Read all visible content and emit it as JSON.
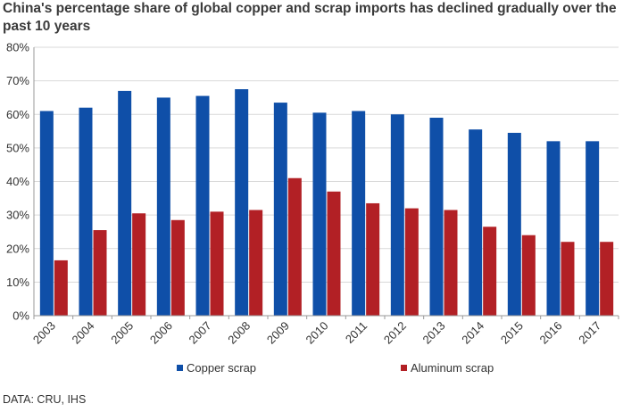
{
  "title": "China's percentage share of global copper and scrap imports has declined gradually over the past 10 years",
  "source": "DATA: CRU, IHS",
  "chart_data": {
    "type": "bar",
    "title": "China's percentage share of global copper and scrap imports has declined gradually over the past 10 years",
    "xlabel": "",
    "ylabel": "",
    "categories": [
      "2003",
      "2004",
      "2005",
      "2006",
      "2007",
      "2008",
      "2009",
      "2010",
      "2011",
      "2012",
      "2013",
      "2014",
      "2015",
      "2016",
      "2017"
    ],
    "series": [
      {
        "name": "Copper scrap",
        "color": "#0f4fa8",
        "values": [
          61,
          62,
          67,
          65,
          65.5,
          67.5,
          63.5,
          60.5,
          61,
          60,
          59,
          55.5,
          54.5,
          52,
          52
        ]
      },
      {
        "name": "Aluminum scrap",
        "color": "#b22025",
        "values": [
          16.5,
          25.5,
          30.5,
          28.5,
          31,
          31.5,
          41,
          37,
          33.5,
          32,
          31.5,
          26.5,
          24,
          22,
          22
        ]
      }
    ],
    "ylim": [
      0,
      80
    ],
    "yticks": [
      "0%",
      "10%",
      "20%",
      "30%",
      "40%",
      "50%",
      "60%",
      "70%",
      "80%"
    ],
    "ytick_values": [
      0,
      10,
      20,
      30,
      40,
      50,
      60,
      70,
      80
    ],
    "grid": "horizontal",
    "legend": "bottom"
  }
}
